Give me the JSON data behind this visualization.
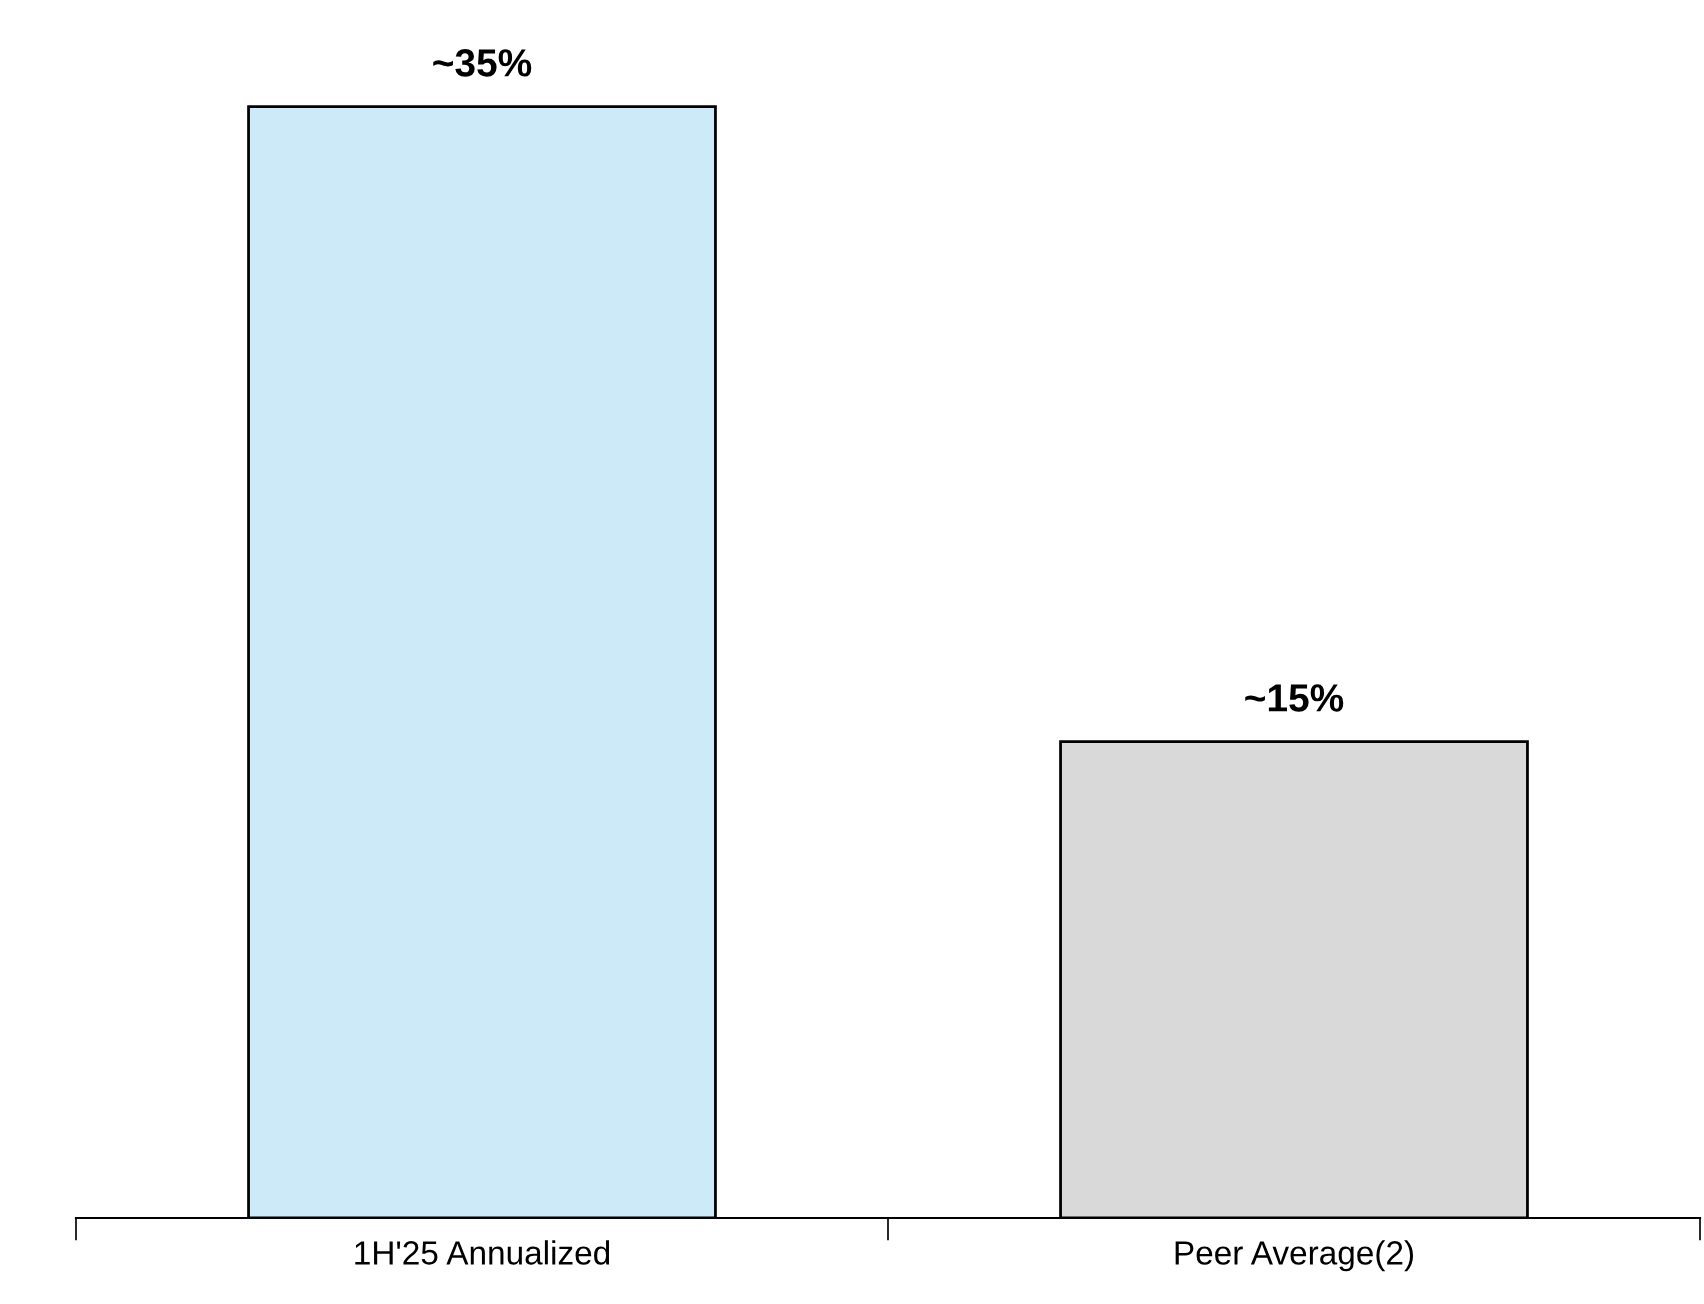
{
  "chart_data": {
    "type": "bar",
    "categories": [
      "1H'25 Annualized",
      "Peer Average(2)"
    ],
    "values": [
      35,
      15
    ],
    "colors": [
      "#cdeaf9",
      "#d9d9d9"
    ],
    "value_labels": [
      "~35%",
      "~15%"
    ],
    "grid": false,
    "legend": false
  }
}
